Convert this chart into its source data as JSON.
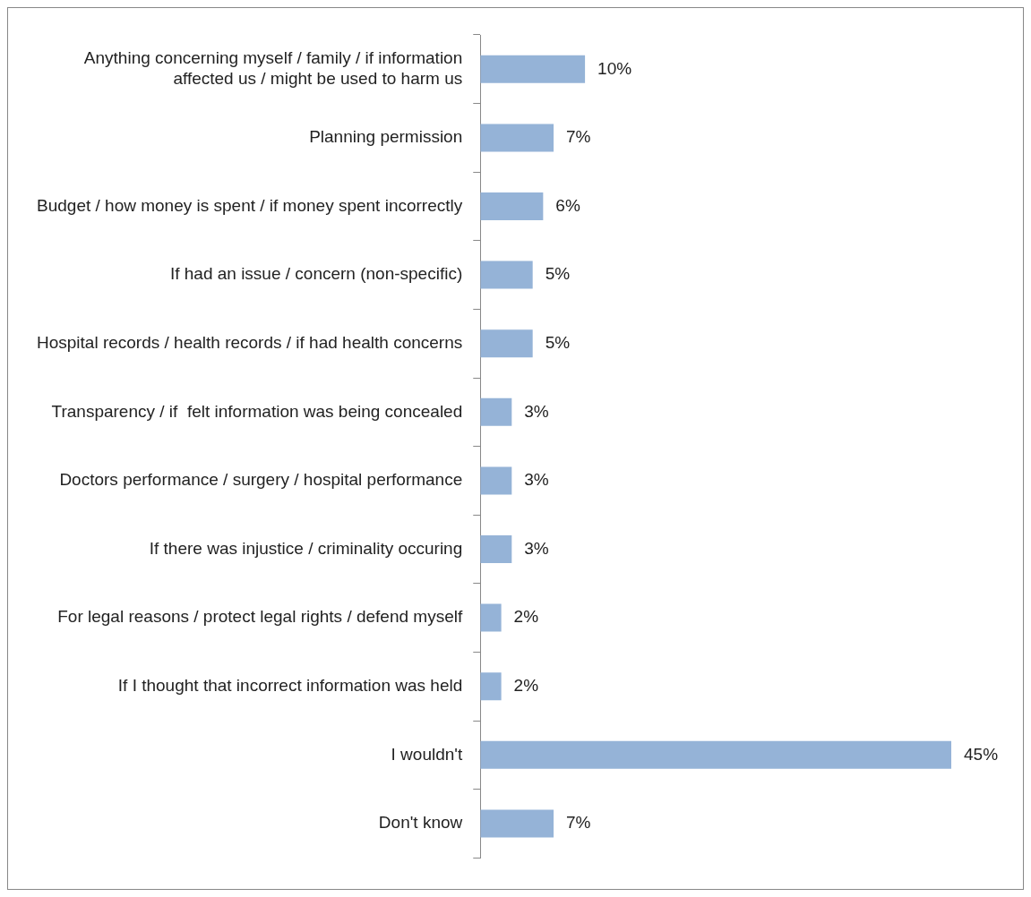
{
  "chart_data": {
    "type": "bar",
    "orientation": "horizontal",
    "categories": [
      "Anything concerning myself / family / if information affected us / might be used to harm us",
      "Planning permission",
      "Budget / how money is spent / if money spent incorrectly",
      "If had an issue / concern (non-specific)",
      "Hospital records / health records / if had health concerns",
      "Transparency / if  felt information was being concealed",
      "Doctors performance / surgery / hospital performance",
      "If there was injustice / criminality occuring",
      "For legal reasons / protect legal rights / defend myself",
      "If I thought that incorrect information was held",
      "I wouldn't",
      "Don't know"
    ],
    "values": [
      10,
      7,
      6,
      5,
      5,
      3,
      3,
      3,
      2,
      2,
      45,
      7
    ],
    "value_labels": [
      "10%",
      "7%",
      "6%",
      "5%",
      "5%",
      "3%",
      "3%",
      "3%",
      "2%",
      "2%",
      "45%",
      "7%"
    ],
    "color": "#95b3d7",
    "tick_labels": "y"
  }
}
